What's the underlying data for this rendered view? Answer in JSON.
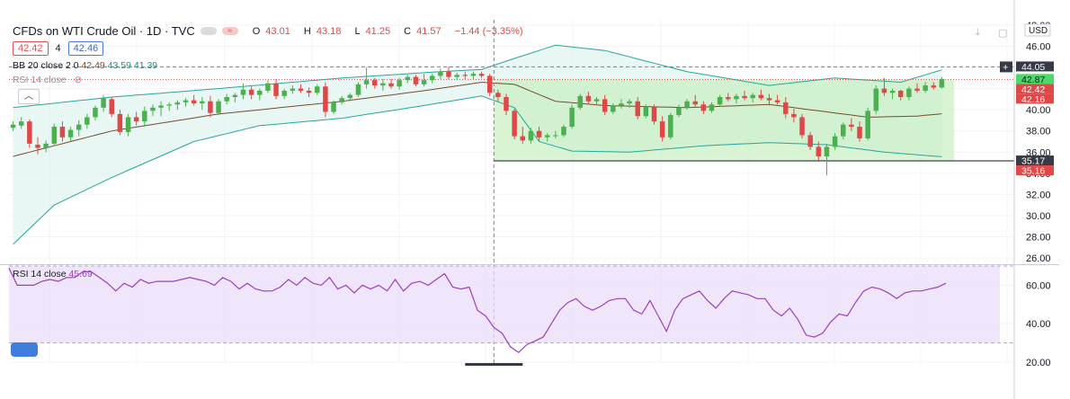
{
  "header": {
    "title": "CFDs on WTI Crude Oil · 1D · TVC",
    "ohlc": {
      "o_label": "O",
      "o": "43.01",
      "h_label": "H",
      "h": "43.18",
      "l_label": "L",
      "l": "41.25",
      "c_label": "C",
      "c": "41.57",
      "change": "−1.44 (−3.35%)"
    }
  },
  "bidask": {
    "bid": "42.42",
    "spread": "4",
    "ask": "42.46"
  },
  "indicators": {
    "bb": {
      "label": "BB 20 close 2 0",
      "basis": "42.49",
      "upper": "43.59",
      "lower": "41.39"
    },
    "rsi_collapsed": {
      "label": "RSI 14 close"
    },
    "rsi": {
      "label": "RSI 14 close",
      "value": "45.69"
    }
  },
  "price_axis": {
    "unit": "USD",
    "ticks": [
      48.0,
      46.0,
      44.0,
      42.0,
      40.0,
      38.0,
      36.0,
      34.0,
      32.0,
      30.0,
      28.0,
      26.0
    ],
    "tick_labels": [
      "48.00",
      "46.00",
      "44.00",
      "42.00",
      "40.00",
      "38.00",
      "36.00",
      "34.00",
      "32.00",
      "30.00",
      "28.00",
      "26.00"
    ],
    "range": [
      25.5,
      48.5
    ],
    "badges": [
      {
        "label": "44.05",
        "value": 44.05,
        "color": "#363a45"
      },
      {
        "label": "42.87",
        "value": 42.87,
        "color": "#4fd86a"
      },
      {
        "label": "42.42",
        "value": 42.42,
        "color": "#e04848"
      },
      {
        "label": "42.16",
        "value": 42.16,
        "color": "#e04848"
      },
      {
        "label": "35.17",
        "value": 35.17,
        "color": "#363a45"
      },
      {
        "label": "35.16",
        "value": 35.16,
        "color": "#e04848"
      }
    ]
  },
  "rsi_axis": {
    "ticks": [
      60,
      40,
      20
    ],
    "tick_labels": [
      "60.00",
      "40.00",
      "20.00"
    ],
    "range": [
      19,
      70
    ],
    "band": [
      30,
      70
    ],
    "band_color": "#e8dbfb",
    "line_color": "#9b3fbf"
  },
  "colors": {
    "up": "#4caf50",
    "down": "#e04848",
    "bb_basis": "#7a4b2b",
    "bb_band": "#26a69a",
    "bb_fill": "#e2f4f1",
    "range_box": "#c8f0c0"
  },
  "chart_data": {
    "type": "candlestick",
    "symbol": "CFDs on WTI Crude Oil",
    "interval": "1D",
    "candles": [
      [
        38.3,
        38.9,
        38.0,
        38.6
      ],
      [
        38.5,
        39.3,
        38.2,
        38.9
      ],
      [
        38.9,
        39.1,
        36.4,
        36.8
      ],
      [
        36.7,
        37.4,
        35.8,
        36.4
      ],
      [
        36.4,
        37.1,
        36.0,
        36.8
      ],
      [
        36.8,
        38.7,
        36.6,
        38.4
      ],
      [
        38.4,
        38.9,
        37.0,
        37.4
      ],
      [
        37.4,
        38.4,
        37.0,
        38.1
      ],
      [
        38.1,
        39.0,
        37.5,
        38.6
      ],
      [
        38.6,
        39.6,
        38.2,
        39.3
      ],
      [
        39.3,
        40.4,
        39.0,
        40.2
      ],
      [
        40.2,
        41.4,
        39.8,
        41.1
      ],
      [
        41.0,
        41.2,
        39.3,
        39.6
      ],
      [
        39.6,
        40.0,
        37.6,
        37.9
      ],
      [
        37.9,
        39.6,
        37.5,
        39.3
      ],
      [
        39.3,
        39.8,
        38.5,
        38.9
      ],
      [
        38.9,
        40.3,
        38.4,
        39.9
      ],
      [
        39.9,
        40.5,
        39.4,
        40.2
      ],
      [
        40.2,
        40.8,
        39.4,
        40.4
      ],
      [
        40.4,
        40.7,
        39.9,
        40.5
      ],
      [
        40.5,
        40.9,
        40.0,
        40.7
      ],
      [
        40.7,
        41.1,
        40.3,
        40.9
      ],
      [
        40.9,
        41.4,
        40.4,
        40.6
      ],
      [
        40.6,
        41.2,
        40.0,
        40.8
      ],
      [
        40.8,
        41.3,
        39.3,
        39.7
      ],
      [
        39.7,
        41.0,
        39.5,
        40.8
      ],
      [
        40.8,
        41.5,
        40.5,
        41.2
      ],
      [
        41.2,
        41.6,
        40.7,
        41.4
      ],
      [
        41.4,
        42.5,
        41.0,
        41.9
      ],
      [
        41.9,
        42.2,
        41.0,
        41.4
      ],
      [
        41.4,
        42.0,
        40.9,
        41.8
      ],
      [
        41.8,
        42.8,
        41.6,
        42.5
      ],
      [
        42.5,
        42.9,
        41.0,
        41.3
      ],
      [
        41.3,
        42.0,
        41.0,
        41.8
      ],
      [
        41.8,
        42.3,
        41.5,
        42.0
      ],
      [
        42.0,
        42.4,
        41.6,
        41.8
      ],
      [
        41.8,
        42.1,
        41.2,
        41.6
      ],
      [
        41.6,
        42.4,
        41.4,
        42.2
      ],
      [
        42.2,
        42.6,
        39.3,
        39.8
      ],
      [
        39.8,
        40.9,
        39.6,
        40.7
      ],
      [
        40.7,
        41.3,
        40.5,
        41.1
      ],
      [
        41.1,
        41.6,
        40.8,
        41.4
      ],
      [
        41.4,
        42.6,
        41.2,
        42.4
      ],
      [
        42.4,
        44.0,
        42.0,
        42.8
      ],
      [
        42.8,
        43.0,
        42.0,
        42.3
      ],
      [
        42.3,
        42.9,
        41.8,
        42.5
      ],
      [
        42.5,
        42.9,
        42.0,
        42.2
      ],
      [
        42.2,
        43.0,
        41.9,
        42.8
      ],
      [
        42.8,
        43.3,
        42.5,
        43.1
      ],
      [
        43.1,
        43.3,
        42.2,
        42.4
      ],
      [
        42.4,
        43.4,
        42.2,
        42.8
      ],
      [
        42.8,
        43.4,
        42.5,
        43.2
      ],
      [
        43.2,
        43.9,
        42.9,
        43.6
      ],
      [
        43.6,
        44.1,
        42.9,
        43.1
      ],
      [
        43.1,
        43.5,
        42.8,
        43.3
      ],
      [
        43.3,
        43.6,
        42.9,
        43.2
      ],
      [
        43.2,
        43.6,
        42.9,
        43.4
      ],
      [
        43.4,
        43.6,
        43.0,
        43.2
      ],
      [
        43.2,
        43.4,
        41.3,
        41.6
      ],
      [
        41.6,
        41.9,
        40.7,
        41.2
      ],
      [
        41.2,
        41.5,
        39.5,
        39.9
      ],
      [
        39.9,
        40.1,
        37.2,
        37.5
      ],
      [
        37.5,
        38.4,
        36.8,
        37.1
      ],
      [
        37.1,
        38.3,
        36.8,
        38.0
      ],
      [
        38.0,
        38.4,
        37.0,
        37.4
      ],
      [
        37.4,
        37.8,
        37.0,
        37.6
      ],
      [
        37.6,
        38.0,
        37.3,
        37.6
      ],
      [
        37.6,
        38.6,
        37.4,
        38.4
      ],
      [
        38.4,
        40.5,
        38.2,
        40.2
      ],
      [
        40.2,
        41.5,
        40.0,
        41.3
      ],
      [
        41.3,
        41.7,
        40.5,
        40.8
      ],
      [
        40.8,
        41.2,
        40.5,
        41.0
      ],
      [
        41.0,
        41.4,
        39.5,
        39.8
      ],
      [
        39.8,
        40.6,
        39.6,
        40.4
      ],
      [
        40.4,
        41.0,
        40.1,
        40.6
      ],
      [
        40.6,
        41.0,
        40.2,
        40.8
      ],
      [
        40.8,
        41.2,
        39.1,
        39.4
      ],
      [
        39.4,
        40.5,
        39.2,
        40.3
      ],
      [
        40.3,
        40.5,
        38.6,
        38.9
      ],
      [
        38.9,
        39.4,
        37.0,
        37.4
      ],
      [
        37.4,
        39.7,
        37.2,
        39.5
      ],
      [
        39.5,
        40.5,
        39.3,
        40.2
      ],
      [
        40.2,
        41.0,
        40.0,
        40.8
      ],
      [
        40.8,
        41.4,
        40.2,
        40.5
      ],
      [
        40.5,
        40.8,
        39.6,
        39.9
      ],
      [
        39.9,
        40.7,
        39.7,
        40.5
      ],
      [
        40.5,
        41.4,
        40.3,
        41.2
      ],
      [
        41.2,
        41.6,
        40.8,
        41.0
      ],
      [
        41.0,
        41.5,
        40.6,
        41.3
      ],
      [
        41.3,
        41.8,
        40.9,
        41.1
      ],
      [
        41.1,
        41.6,
        40.7,
        41.4
      ],
      [
        41.4,
        41.9,
        40.9,
        41.1
      ],
      [
        41.1,
        41.5,
        40.4,
        40.9
      ],
      [
        40.9,
        41.4,
        40.5,
        40.7
      ],
      [
        40.7,
        41.2,
        39.2,
        39.6
      ],
      [
        39.6,
        40.1,
        38.8,
        39.3
      ],
      [
        39.3,
        39.6,
        37.3,
        37.6
      ],
      [
        37.6,
        37.9,
        36.2,
        36.5
      ],
      [
        36.5,
        37.0,
        35.2,
        35.6
      ],
      [
        35.6,
        36.8,
        33.8,
        36.5
      ],
      [
        36.5,
        37.8,
        36.2,
        37.5
      ],
      [
        37.5,
        38.8,
        37.2,
        38.6
      ],
      [
        38.6,
        39.2,
        38.0,
        38.4
      ],
      [
        38.4,
        38.9,
        37.0,
        37.3
      ],
      [
        37.3,
        40.2,
        37.1,
        39.9
      ],
      [
        39.9,
        42.3,
        39.6,
        42.0
      ],
      [
        42.0,
        43.0,
        41.3,
        41.6
      ],
      [
        41.6,
        42.0,
        41.0,
        41.8
      ],
      [
        41.8,
        41.9,
        40.9,
        41.2
      ],
      [
        41.2,
        42.2,
        40.9,
        42.0
      ],
      [
        42.0,
        42.5,
        41.6,
        41.8
      ],
      [
        41.8,
        42.6,
        41.6,
        42.3
      ],
      [
        42.3,
        42.6,
        41.9,
        42.1
      ],
      [
        42.1,
        43.1,
        42.0,
        42.9
      ]
    ],
    "bb_upper": [
      [
        0,
        40.2
      ],
      [
        12,
        41.2
      ],
      [
        25,
        42.0
      ],
      [
        40,
        43.0
      ],
      [
        52,
        43.6
      ],
      [
        57,
        43.8
      ],
      [
        60,
        44.6
      ],
      [
        66,
        46.1
      ],
      [
        72,
        45.6
      ],
      [
        82,
        43.6
      ],
      [
        92,
        42.3
      ],
      [
        100,
        43.0
      ],
      [
        104,
        42.8
      ],
      [
        108,
        42.6
      ],
      [
        114,
        44.0
      ]
    ],
    "bb_basis": [
      [
        0,
        35.6
      ],
      [
        12,
        38.0
      ],
      [
        25,
        39.6
      ],
      [
        40,
        40.8
      ],
      [
        50,
        41.8
      ],
      [
        57,
        42.6
      ],
      [
        61,
        42.4
      ],
      [
        66,
        40.8
      ],
      [
        72,
        40.4
      ],
      [
        82,
        40.2
      ],
      [
        92,
        40.5
      ],
      [
        98,
        39.9
      ],
      [
        104,
        39.3
      ],
      [
        110,
        39.4
      ],
      [
        114,
        39.7
      ]
    ],
    "bb_lower": [
      [
        0,
        27.3
      ],
      [
        5,
        31.0
      ],
      [
        12,
        33.6
      ],
      [
        22,
        37.0
      ],
      [
        30,
        38.5
      ],
      [
        40,
        39.2
      ],
      [
        50,
        40.4
      ],
      [
        57,
        41.3
      ],
      [
        61,
        40.2
      ],
      [
        64,
        37.0
      ],
      [
        68,
        36.1
      ],
      [
        75,
        36.0
      ],
      [
        84,
        36.6
      ],
      [
        92,
        36.9
      ],
      [
        99,
        36.7
      ],
      [
        106,
        36.0
      ],
      [
        114,
        35.5
      ]
    ],
    "range_box": {
      "from_index": 59,
      "to_index": 114,
      "top": 42.87,
      "bottom": 35.17
    },
    "hline_dashed": 44.05,
    "hline_red_dotted": 42.87,
    "vline_index": 58,
    "rsi": [
      69,
      60,
      60,
      60,
      62,
      63,
      62,
      64,
      64,
      67,
      67,
      64,
      61,
      57,
      61,
      59,
      63,
      61,
      62,
      62,
      62,
      63,
      64,
      63,
      62,
      60,
      64,
      62,
      58,
      61,
      58,
      57,
      57,
      59,
      63,
      60,
      64,
      61,
      60,
      64,
      58,
      60,
      56,
      60,
      58,
      60,
      57,
      63,
      57,
      61,
      62,
      60,
      63,
      66,
      59,
      58,
      59,
      47,
      44,
      38,
      35,
      28,
      25,
      29,
      31,
      33,
      40,
      47,
      51,
      53,
      49,
      47,
      49,
      52,
      53,
      53,
      47,
      45,
      52,
      44,
      36,
      47,
      53,
      55,
      57,
      52,
      48,
      53,
      57,
      56,
      55,
      53,
      53,
      47,
      44,
      48,
      42,
      34,
      33,
      35,
      41,
      45,
      44,
      51,
      57,
      59,
      58,
      56,
      53,
      56,
      57,
      57,
      58,
      59,
      61
    ]
  }
}
